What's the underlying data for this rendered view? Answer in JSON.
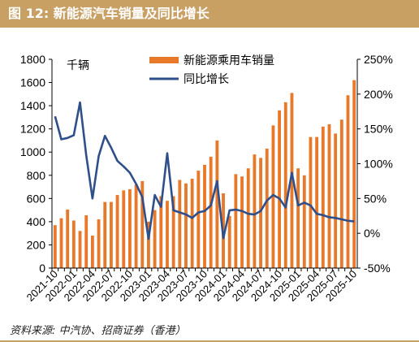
{
  "header": {
    "title": "图 12:  新能源汽车销量及同比增长"
  },
  "footer": {
    "source": "资料来源:  中汽协、招商证券（香港）"
  },
  "colors": {
    "bar": "#e8792b",
    "line": "#2e4f8a",
    "title_bg": "#c8a064"
  },
  "chart_data": {
    "type": "bar+line",
    "unit_label": "千辆",
    "categories": [
      "2021-10",
      "2021-11",
      "2021-12",
      "2022-01",
      "2022-02",
      "2022-03",
      "2022-04",
      "2022-05",
      "2022-06",
      "2022-07",
      "2022-08",
      "2022-09",
      "2022-10",
      "2022-11",
      "2022-12",
      "2023-01",
      "2023-02",
      "2023-03",
      "2023-04",
      "2023-05",
      "2023-06",
      "2023-07",
      "2023-08",
      "2023-09",
      "2023-10",
      "2023-11",
      "2023-12",
      "2024-01",
      "2024-02",
      "2024-03",
      "2024-04",
      "2024-05",
      "2024-06",
      "2024-07",
      "2024-08",
      "2024-09",
      "2024-10",
      "2024-11",
      "2024-12",
      "2025-01",
      "2025-02",
      "2025-03",
      "2025-04",
      "2025-05",
      "2025-06",
      "2025-07",
      "2025-08",
      "2025-09",
      "2025-10"
    ],
    "tick_labels": [
      "2021-10",
      "2022-01",
      "2022-04",
      "2022-07",
      "2022-10",
      "2023-01",
      "2023-04",
      "2023-07",
      "2023-10",
      "2024-01",
      "2024-04",
      "2024-07",
      "2024-10",
      "2025-01",
      "2025-04",
      "2025-07",
      "2025-10"
    ],
    "series": [
      {
        "name": "新能源乘用车销量",
        "type": "bar",
        "axis": "left",
        "values": [
          370,
          430,
          505,
          410,
          320,
          455,
          280,
          420,
          570,
          570,
          630,
          670,
          680,
          720,
          750,
          400,
          500,
          620,
          580,
          620,
          760,
          730,
          770,
          840,
          890,
          960,
          1100,
          645,
          450,
          810,
          790,
          860,
          980,
          950,
          1030,
          1230,
          1360,
          1430,
          1510,
          860,
          800,
          1130,
          1130,
          1220,
          1240,
          1160,
          1280,
          1490,
          1620
        ]
      },
      {
        "name": "同比增长",
        "type": "line",
        "axis": "right",
        "values": [
          168,
          135,
          137,
          141,
          188,
          112,
          50,
          111,
          140,
          123,
          104,
          96,
          87,
          71,
          52,
          -8,
          55,
          38,
          115,
          33,
          30,
          27,
          22,
          30,
          32,
          40,
          75,
          -7,
          33,
          34,
          32,
          28,
          27,
          32,
          47,
          55,
          50,
          37,
          87,
          40,
          44,
          40,
          28,
          26,
          23,
          22,
          20,
          18,
          17
        ]
      }
    ],
    "y_left": {
      "min": 0,
      "max": 1800,
      "ticks": [
        0,
        200,
        400,
        600,
        800,
        1000,
        1200,
        1400,
        1600,
        1800
      ]
    },
    "y_right": {
      "min": -50,
      "max": 250,
      "ticks": [
        "-50%",
        "0%",
        "50%",
        "100%",
        "150%",
        "200%",
        "250%"
      ]
    },
    "legend": {
      "placement": "top-center"
    },
    "grid": false
  }
}
